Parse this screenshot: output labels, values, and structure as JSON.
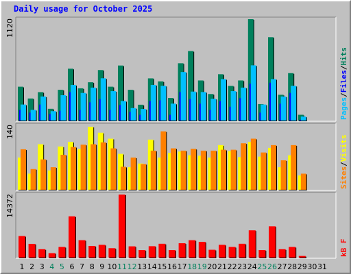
{
  "title": "Daily usage for October 2025",
  "colors": {
    "hits": "#00805c",
    "files": "#0000ff",
    "pages": "#00c0ff",
    "visits": "#ffff00",
    "sites": "#ff8000",
    "kbytes": "#ff0000",
    "weekend_label": "#00805c",
    "weekday_label": "#000000"
  },
  "chart_data": [
    {
      "type": "bar",
      "panel": "hits-files-pages",
      "ymax_label": "1120",
      "ylim": [
        0,
        1120
      ],
      "legend": [
        "Pages",
        "/",
        "Files",
        "/",
        "Hits"
      ],
      "categories": [
        "1",
        "2",
        "3",
        "4",
        "5",
        "6",
        "7",
        "8",
        "9",
        "10",
        "11",
        "12",
        "13",
        "14",
        "15",
        "16",
        "17",
        "18",
        "19",
        "20",
        "21",
        "22",
        "23",
        "24",
        "25",
        "26",
        "27",
        "28",
        "29",
        "30",
        "31"
      ],
      "weekend_days": [
        "4",
        "5",
        "11",
        "12",
        "18",
        "19",
        "25",
        "26"
      ],
      "series": [
        {
          "name": "Hits",
          "values": [
            374,
            244,
            314,
            130,
            340,
            573,
            356,
            423,
            558,
            374,
            608,
            340,
            175,
            466,
            433,
            249,
            633,
            768,
            443,
            293,
            512,
            383,
            443,
            1120,
            182,
            921,
            285,
            524,
            64,
            0,
            0
          ]
        },
        {
          "name": "Files",
          "values": [
            118,
            88,
            177,
            74,
            109,
            315,
            118,
            202,
            236,
            118,
            172,
            97,
            64,
            217,
            224,
            64,
            315,
            236,
            187,
            118,
            216,
            153,
            248,
            408,
            88,
            418,
            187,
            305,
            10,
            0,
            0
          ]
        },
        {
          "name": "Pages",
          "values": [
            177,
            118,
            266,
            104,
            280,
            394,
            305,
            364,
            467,
            325,
            216,
            138,
            128,
            394,
            384,
            187,
            536,
            320,
            315,
            241,
            458,
            325,
            364,
            610,
            177,
            458,
            266,
            384,
            44,
            0,
            0
          ]
        }
      ]
    },
    {
      "type": "bar",
      "panel": "visits-sites",
      "ymax_label": "140",
      "ylim": [
        0,
        140
      ],
      "legend": [
        "Sites",
        "/",
        "Visits"
      ],
      "categories": [
        "1",
        "2",
        "3",
        "4",
        "5",
        "6",
        "7",
        "8",
        "9",
        "10",
        "11",
        "12",
        "13",
        "14",
        "15",
        "16",
        "17",
        "18",
        "19",
        "20",
        "21",
        "22",
        "23",
        "24",
        "25",
        "26",
        "27",
        "28",
        "29",
        "30",
        "31"
      ],
      "weekend_days": [
        "4",
        "5",
        "11",
        "12",
        "18",
        "19",
        "25",
        "26"
      ],
      "series": [
        {
          "name": "Visits",
          "values": [
            70,
            35,
            99,
            42,
            94,
            104,
            89,
            137,
            124,
            111,
            78,
            49,
            57,
            109,
            70,
            80,
            83,
            75,
            74,
            70,
            97,
            84,
            71,
            104,
            72,
            91,
            49,
            75,
            31,
            0,
            0
          ]
        },
        {
          "name": "Sites",
          "values": [
            88,
            45,
            66,
            49,
            76,
            93,
            98,
            99,
            103,
            90,
            50,
            70,
            56,
            85,
            127,
            90,
            85,
            89,
            85,
            85,
            87,
            87,
            101,
            111,
            81,
            97,
            64,
            97,
            35,
            0,
            0
          ]
        }
      ]
    },
    {
      "type": "bar",
      "panel": "kbytes",
      "ymax_label": "14372",
      "ylim": [
        0,
        14372
      ],
      "legend": [
        "kB F"
      ],
      "categories": [
        "1",
        "2",
        "3",
        "4",
        "5",
        "6",
        "7",
        "8",
        "9",
        "10",
        "11",
        "12",
        "13",
        "14",
        "15",
        "16",
        "17",
        "18",
        "19",
        "20",
        "21",
        "22",
        "23",
        "24",
        "25",
        "26",
        "27",
        "28",
        "29",
        "30",
        "31"
      ],
      "weekend_days": [
        "4",
        "5",
        "11",
        "12",
        "18",
        "19",
        "25",
        "26"
      ],
      "series": [
        {
          "name": "kB F",
          "values": [
            4904,
            3127,
            1908,
            1007,
            2419,
            9401,
            3963,
            2655,
            2903,
            2138,
            14372,
            2561,
            1717,
            2594,
            3148,
            1717,
            3269,
            3963,
            3576,
            1782,
            2903,
            2419,
            3148,
            6214,
            1717,
            7130,
            1908,
            2419,
            369,
            0,
            0
          ]
        }
      ]
    }
  ]
}
